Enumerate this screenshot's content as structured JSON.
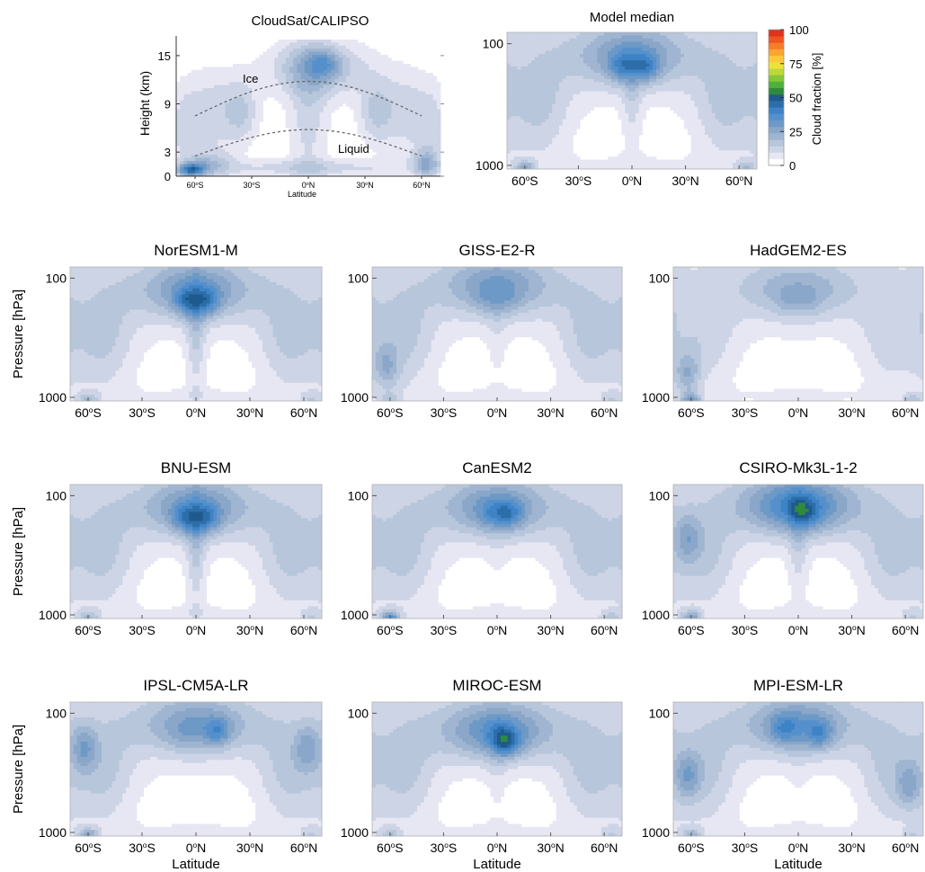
{
  "figure": {
    "colorbar": {
      "label": "Cloud fraction [%]",
      "ticks": [
        "100",
        "75",
        "50",
        "25",
        "0"
      ],
      "levels": [
        0,
        5,
        10,
        15,
        20,
        25,
        30,
        35,
        40,
        45,
        50,
        55,
        60,
        65,
        70,
        75,
        80,
        85,
        90,
        95,
        100
      ],
      "colors": [
        "#ffffff",
        "#e7e7f4",
        "#cdd4e6",
        "#b7c6db",
        "#9fb5d1",
        "#8aa6c8",
        "#6d99c6",
        "#5590cc",
        "#3e83c6",
        "#2d6ea8",
        "#1f5a8e",
        "#2f8a3c",
        "#4fb03c",
        "#86c63a",
        "#bcd83a",
        "#eee23a",
        "#fbc93a",
        "#f9a533",
        "#f57d28",
        "#ee5520",
        "#e1321a"
      ]
    },
    "observations": {
      "title": "CloudSat/CALIPSO",
      "ylabel": "Height (km)",
      "xlabel": "Latitude",
      "yticks": [
        "15",
        "9",
        "3",
        "0"
      ],
      "xticks": [
        "60°S",
        "30°S",
        "0°N",
        "30°N",
        "60°N"
      ],
      "annotations": [
        "Ice",
        "Liquid"
      ]
    },
    "model_axes": {
      "ylabel": "Pressure [hPa]",
      "xlabel": "Latitude",
      "yticks": [
        "100",
        "1000"
      ],
      "xticks": [
        "60°S",
        "30°S",
        "0°N",
        "30°N",
        "60°N"
      ]
    },
    "panels": [
      {
        "title": "Model median"
      },
      {
        "title": "NorESM1-M"
      },
      {
        "title": "GISS-E2-R"
      },
      {
        "title": "HadGEM2-ES"
      },
      {
        "title": "BNU-ESM"
      },
      {
        "title": "CanESM2"
      },
      {
        "title": "CSIRO-Mk3L-1-2"
      },
      {
        "title": "IPSL-CM5A-LR"
      },
      {
        "title": "MIROC-ESM"
      },
      {
        "title": "MPI-ESM-LR"
      }
    ]
  },
  "chart_data": [
    {
      "type": "heatmap",
      "title": "CloudSat/CALIPSO",
      "xlabel": "Latitude",
      "ylabel": "Height (km)",
      "xlim": [
        -70,
        70
      ],
      "ylim": [
        0,
        17
      ],
      "zlabel": "Cloud fraction [%]",
      "zlim": [
        0,
        100
      ],
      "annotations": [
        "Ice",
        "Liquid"
      ],
      "features": [
        {
          "lat": 0,
          "height_km": 13.5,
          "cloud_fraction": 32
        },
        {
          "lat": 10,
          "height_km": 14,
          "cloud_fraction": 40
        },
        {
          "lat": -60,
          "height_km": 1,
          "cloud_fraction": 55
        },
        {
          "lat": 62,
          "height_km": 1,
          "cloud_fraction": 34
        }
      ]
    },
    {
      "type": "heatmap",
      "title": "Model median",
      "xlabel": "Latitude",
      "ylabel": "Pressure [hPa]",
      "xlim": [
        -70,
        70
      ],
      "ylim": [
        1000,
        70
      ],
      "zlim": [
        0,
        100
      ],
      "features": [
        {
          "lat": -8,
          "pressure_hPa": 190,
          "cloud_fraction": 33
        },
        {
          "lat": 8,
          "pressure_hPa": 200,
          "cloud_fraction": 38
        },
        {
          "lat": -62,
          "pressure_hPa": 975,
          "cloud_fraction": 38
        },
        {
          "lat": 62,
          "pressure_hPa": 975,
          "cloud_fraction": 28
        }
      ]
    },
    {
      "type": "heatmap",
      "title": "NorESM1-M",
      "xlabel": "Latitude",
      "ylabel": "Pressure [hPa]",
      "xlim": [
        -70,
        70
      ],
      "ylim": [
        1000,
        70
      ],
      "zlim": [
        0,
        100
      ],
      "features": [
        {
          "lat": -5,
          "pressure_hPa": 200,
          "cloud_fraction": 34
        },
        {
          "lat": 6,
          "pressure_hPa": 200,
          "cloud_fraction": 34
        },
        {
          "lat": -62,
          "pressure_hPa": 970,
          "cloud_fraction": 32
        }
      ]
    },
    {
      "type": "heatmap",
      "title": "GISS-E2-R",
      "xlabel": "Latitude",
      "ylabel": "Pressure [hPa]",
      "xlim": [
        -70,
        70
      ],
      "ylim": [
        1000,
        70
      ],
      "zlim": [
        0,
        100
      ],
      "features": [
        {
          "lat": 0,
          "pressure_hPa": 180,
          "cloud_fraction": 24
        },
        {
          "lat": -65,
          "pressure_hPa": 550,
          "cloud_fraction": 30
        }
      ]
    },
    {
      "type": "heatmap",
      "title": "HadGEM2-ES",
      "xlabel": "Latitude",
      "ylabel": "Pressure [hPa]",
      "xlim": [
        -70,
        70
      ],
      "ylim": [
        1000,
        70
      ],
      "zlim": [
        0,
        100
      ],
      "features": [
        {
          "lat": 0,
          "pressure_hPa": 200,
          "cloud_fraction": 18
        },
        {
          "lat": -62,
          "pressure_hPa": 750,
          "cloud_fraction": 30
        },
        {
          "lat": -62,
          "pressure_hPa": 980,
          "cloud_fraction": 45
        },
        {
          "lat": 65,
          "pressure_hPa": 960,
          "cloud_fraction": 26
        }
      ]
    },
    {
      "type": "heatmap",
      "title": "BNU-ESM",
      "xlabel": "Latitude",
      "ylabel": "Pressure [hPa]",
      "xlim": [
        -70,
        70
      ],
      "ylim": [
        1000,
        70
      ],
      "zlim": [
        0,
        100
      ],
      "features": [
        {
          "lat": -5,
          "pressure_hPa": 200,
          "cloud_fraction": 34
        },
        {
          "lat": 6,
          "pressure_hPa": 200,
          "cloud_fraction": 34
        },
        {
          "lat": -62,
          "pressure_hPa": 970,
          "cloud_fraction": 32
        }
      ]
    },
    {
      "type": "heatmap",
      "title": "CanESM2",
      "xlabel": "Latitude",
      "ylabel": "Pressure [hPa]",
      "xlim": [
        -70,
        70
      ],
      "ylim": [
        1000,
        70
      ],
      "zlim": [
        0,
        100
      ],
      "features": [
        {
          "lat": 5,
          "pressure_hPa": 180,
          "cloud_fraction": 35
        },
        {
          "lat": -60,
          "pressure_hPa": 985,
          "cloud_fraction": 55
        }
      ]
    },
    {
      "type": "heatmap",
      "title": "CSIRO-Mk3L-1-2",
      "xlabel": "Latitude",
      "ylabel": "Pressure [hPa]",
      "xlim": [
        -70,
        70
      ],
      "ylim": [
        1000,
        70
      ],
      "zlim": [
        0,
        100
      ],
      "features": [
        {
          "lat": 3,
          "pressure_hPa": 160,
          "cloud_fraction": 47
        },
        {
          "lat": -62,
          "pressure_hPa": 450,
          "cloud_fraction": 32
        },
        {
          "lat": -62,
          "pressure_hPa": 975,
          "cloud_fraction": 40
        }
      ]
    },
    {
      "type": "heatmap",
      "title": "IPSL-CM5A-LR",
      "xlabel": "Latitude",
      "ylabel": "Pressure [hPa]",
      "xlim": [
        -70,
        70
      ],
      "ylim": [
        1000,
        70
      ],
      "zlim": [
        0,
        100
      ],
      "features": [
        {
          "lat": 12,
          "pressure_hPa": 180,
          "cloud_fraction": 35
        },
        {
          "lat": -60,
          "pressure_hPa": 450,
          "cloud_fraction": 33
        },
        {
          "lat": 60,
          "pressure_hPa": 450,
          "cloud_fraction": 33
        },
        {
          "lat": -62,
          "pressure_hPa": 980,
          "cloud_fraction": 40
        }
      ]
    },
    {
      "type": "heatmap",
      "title": "MIROC-ESM",
      "xlabel": "Latitude",
      "ylabel": "Pressure [hPa]",
      "xlim": [
        -70,
        70
      ],
      "ylim": [
        1000,
        70
      ],
      "zlim": [
        0,
        100
      ],
      "features": [
        {
          "lat": 5,
          "pressure_hPa": 200,
          "cloud_fraction": 42
        },
        {
          "lat": -60,
          "pressure_hPa": 985,
          "cloud_fraction": 32
        }
      ]
    },
    {
      "type": "heatmap",
      "title": "MPI-ESM-LR",
      "xlabel": "Latitude",
      "ylabel": "Pressure [hPa]",
      "xlim": [
        -70,
        70
      ],
      "ylim": [
        1000,
        70
      ],
      "zlim": [
        0,
        100
      ],
      "features": [
        {
          "lat": -6,
          "pressure_hPa": 170,
          "cloud_fraction": 36
        },
        {
          "lat": 12,
          "pressure_hPa": 190,
          "cloud_fraction": 36
        },
        {
          "lat": -62,
          "pressure_hPa": 500,
          "cloud_fraction": 32
        },
        {
          "lat": 62,
          "pressure_hPa": 560,
          "cloud_fraction": 32
        }
      ]
    }
  ]
}
